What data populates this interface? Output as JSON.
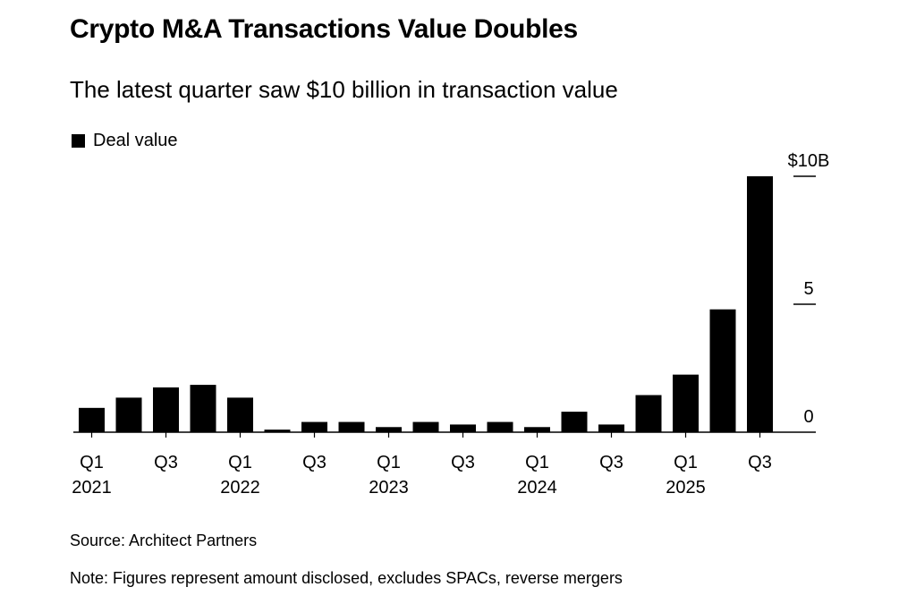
{
  "title": "Crypto M&A Transactions Value Doubles",
  "subtitle": "The latest quarter saw $10 billion in transaction value",
  "source": "Source: Architect Partners",
  "note": "Note: Figures represent amount disclosed, excludes SPACs, reverse mergers",
  "chart_data": {
    "type": "bar",
    "title": "Crypto M&A Transactions Value Doubles",
    "subtitle": "The latest quarter saw $10 billion in transaction value",
    "series": [
      {
        "name": "Deal value",
        "color": "#000000",
        "values": [
          0.95,
          1.35,
          1.75,
          1.85,
          1.35,
          0.1,
          0.4,
          0.4,
          0.2,
          0.4,
          0.3,
          0.4,
          0.2,
          0.8,
          0.3,
          1.45,
          2.25,
          4.8,
          10.0
        ]
      }
    ],
    "categories": [
      "Q1 2021",
      "Q2 2021",
      "Q3 2021",
      "Q4 2021",
      "Q1 2022",
      "Q2 2022",
      "Q3 2022",
      "Q4 2022",
      "Q1 2023",
      "Q2 2023",
      "Q3 2023",
      "Q4 2023",
      "Q1 2024",
      "Q2 2024",
      "Q3 2024",
      "Q4 2024",
      "Q1 2025",
      "Q2 2025",
      "Q3 2025"
    ],
    "x_tick_labels": [
      {
        "index": 0,
        "quarter": "Q1",
        "year": "2021"
      },
      {
        "index": 2,
        "quarter": "Q3",
        "year": ""
      },
      {
        "index": 4,
        "quarter": "Q1",
        "year": "2022"
      },
      {
        "index": 6,
        "quarter": "Q3",
        "year": ""
      },
      {
        "index": 8,
        "quarter": "Q1",
        "year": "2023"
      },
      {
        "index": 10,
        "quarter": "Q3",
        "year": ""
      },
      {
        "index": 12,
        "quarter": "Q1",
        "year": "2024"
      },
      {
        "index": 14,
        "quarter": "Q3",
        "year": ""
      },
      {
        "index": 16,
        "quarter": "Q1",
        "year": "2025"
      },
      {
        "index": 18,
        "quarter": "Q3",
        "year": ""
      }
    ],
    "y_ticks": [
      {
        "value": 0,
        "label": "0"
      },
      {
        "value": 5,
        "label": "5"
      },
      {
        "value": 10,
        "label": "$10B"
      }
    ],
    "ylim": [
      0,
      10
    ],
    "y_axis_position": "right",
    "grid": false,
    "legend_position": "top-left",
    "xlabel": "",
    "ylabel": ""
  }
}
